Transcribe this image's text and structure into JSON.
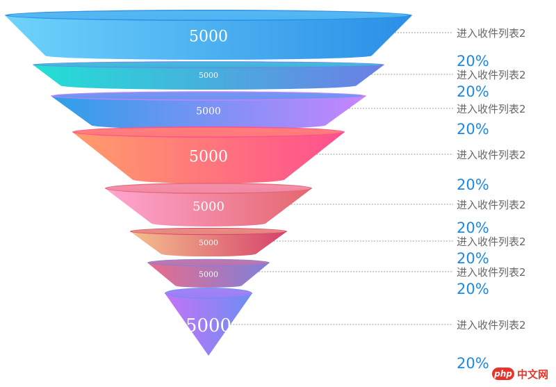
{
  "chart_data": {
    "type": "funnel",
    "title": "",
    "items": [
      {
        "name": "进入收件列表2",
        "value": 5000,
        "value_label": "5000",
        "percent_label": "20%",
        "colors": [
          "#6fd3fb",
          "#2a8fe6"
        ]
      },
      {
        "name": "进入收件列表2",
        "value": 5000,
        "value_label": "5000",
        "percent_label": "20%",
        "colors": [
          "#22e0d5",
          "#6c7ee6"
        ]
      },
      {
        "name": "进入收件列表2",
        "value": 5000,
        "value_label": "5000",
        "percent_label": "20%",
        "colors": [
          "#2d9fe8",
          "#c785ff"
        ]
      },
      {
        "name": "进入收件列表2",
        "value": 5000,
        "value_label": "5000",
        "percent_label": "20%",
        "colors": [
          "#ff9d6a",
          "#ff4f8e"
        ]
      },
      {
        "name": "进入收件列表2",
        "value": 5000,
        "value_label": "5000",
        "percent_label": "20%",
        "colors": [
          "#ffa6d2",
          "#e4676f"
        ]
      },
      {
        "name": "进入收件列表2",
        "value": 5000,
        "value_label": "5000",
        "percent_label": "20%",
        "colors": [
          "#f5c08e",
          "#d6416b"
        ]
      },
      {
        "name": "进入收件列表2",
        "value": 5000,
        "value_label": "5000",
        "percent_label": "20%",
        "colors": [
          "#ea6c8a",
          "#7f80dd"
        ]
      },
      {
        "name": "进入收件列表2",
        "value": 5000,
        "value_label": "5000",
        "percent_label": "20%",
        "colors": [
          "#c474f5",
          "#6e8df5"
        ]
      }
    ],
    "label_color": "#666666",
    "percent_color": "#1e88e5",
    "value_label_color": "#ffffff",
    "leader_line_color": "#999999"
  },
  "watermark": {
    "logo_text": "php",
    "text": "中文网"
  }
}
